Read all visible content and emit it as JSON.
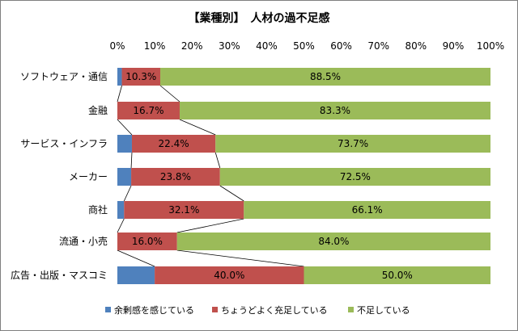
{
  "chart_data": {
    "type": "bar",
    "orientation": "horizontal",
    "stacked": "percent",
    "title": "【業種別】　人材の過不足感",
    "categories": [
      "ソフトウェア・通信",
      "金融",
      "サービス・インフラ",
      "メーカー",
      "商社",
      "流通・小売",
      "広告・出版・マスコミ"
    ],
    "series": [
      {
        "name": "余剰感を感じている",
        "color": "#4f81bd",
        "values": [
          1.2,
          0.0,
          3.9,
          3.7,
          1.8,
          0.0,
          10.0
        ]
      },
      {
        "name": "ちょうどよく充足している",
        "color": "#c0504d",
        "values": [
          10.3,
          16.7,
          22.4,
          23.8,
          32.1,
          16.0,
          40.0
        ]
      },
      {
        "name": "不足している",
        "color": "#9bbb59",
        "values": [
          88.5,
          83.3,
          73.7,
          72.5,
          66.1,
          84.0,
          50.0
        ]
      }
    ],
    "data_labels": [
      [
        null,
        null,
        null,
        null,
        null,
        null,
        null
      ],
      [
        "10.3%",
        "16.7%",
        "22.4%",
        "23.8%",
        "32.1%",
        "16.0%",
        "40.0%"
      ],
      [
        "88.5%",
        "83.3%",
        "73.7%",
        "72.5%",
        "66.1%",
        "84.0%",
        "50.0%"
      ]
    ],
    "xlim": [
      0,
      100
    ],
    "x_ticks": [
      "0%",
      "10%",
      "20%",
      "30%",
      "40%",
      "50%",
      "60%",
      "70%",
      "80%",
      "90%",
      "100%"
    ],
    "series_lines": true,
    "grid": false,
    "legend_position": "bottom"
  }
}
